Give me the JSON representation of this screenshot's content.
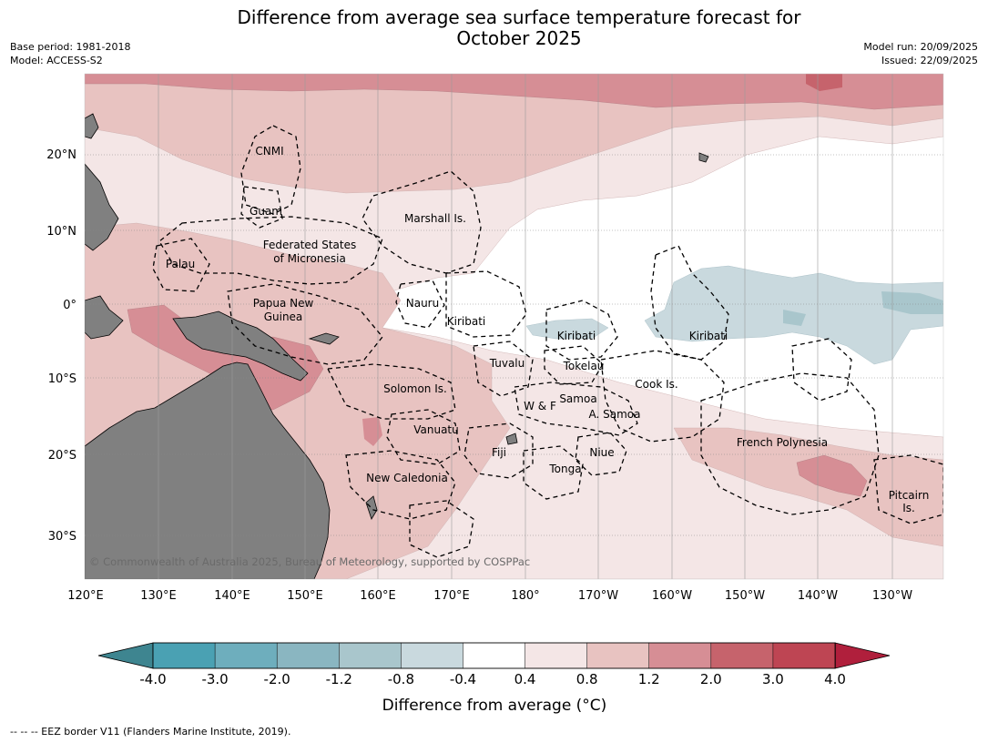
{
  "title_line1": "Difference from average sea surface temperature forecast for",
  "title_line2": "October 2025",
  "base_period": "Base period: 1981-2018",
  "model": "Model: ACCESS-S2",
  "model_run": "Model run: 20/09/2025",
  "issued": "Issued: 22/09/2025",
  "copyright": "© Commonwealth of Australia 2025, Bureau of Meteorology, supported by COSPPac",
  "footnote": "--  --  -- EEZ border V11 (Flanders Marine Institute, 2019).",
  "longitude_labels": [
    "120°E",
    "130°E",
    "140°E",
    "150°E",
    "160°E",
    "170°E",
    "180°",
    "170°W",
    "160°W",
    "150°W",
    "140°W",
    "130°W"
  ],
  "latitude_labels": [
    "20°N",
    "10°N",
    "0°",
    "10°S",
    "20°S",
    "30°S"
  ],
  "places": {
    "cnmi": "CNMI",
    "guam": "Guam",
    "marshall": "Marshall Is.",
    "fsm1": "Federated States",
    "fsm2": "of Micronesia",
    "palau": "Palau",
    "png1": "Papua New",
    "png2": "Guinea",
    "nauru": "Nauru",
    "kiribati_w": "Kiribati",
    "kiribati_c": "Kiribati",
    "kiribati_e": "Kiribati",
    "tuvalu": "Tuvalu",
    "tokelau": "Tokelau",
    "solomon": "Solomon Is.",
    "samoa": "Samoa",
    "wf": "W & F",
    "asamoa": "A. Samoa",
    "cook": "Cook Is.",
    "vanuatu": "Vanuatu",
    "fiji": "Fiji",
    "niue": "Niue",
    "tonga": "Tonga",
    "newcal": "New Caledonia",
    "frpoly": "French Polynesia",
    "pitcairn1": "Pitcairn",
    "pitcairn2": "Is."
  },
  "colorbar": {
    "title": "Difference from average (°C)",
    "ticks": [
      "-4.0",
      "-3.0",
      "-2.0",
      "-1.2",
      "-0.8",
      "-0.4",
      "0.4",
      "0.8",
      "1.2",
      "2.0",
      "3.0",
      "4.0"
    ],
    "colors": [
      "#3e8590",
      "#4aa1b3",
      "#6eaebd",
      "#8ab6c1",
      "#a9c6cc",
      "#c9d9de",
      "#ffffff",
      "#f4e6e6",
      "#e8c3c1",
      "#d68e95",
      "#c6636c",
      "#be4553",
      "#b01f3c"
    ]
  },
  "colors": {
    "land": "#808080",
    "warm_light": "#f4e6e6",
    "warm_mid": "#e8c3c1",
    "warm_strong": "#d68e95",
    "warm_stronger": "#c6636c",
    "cool_light": "#c9d9de"
  }
}
